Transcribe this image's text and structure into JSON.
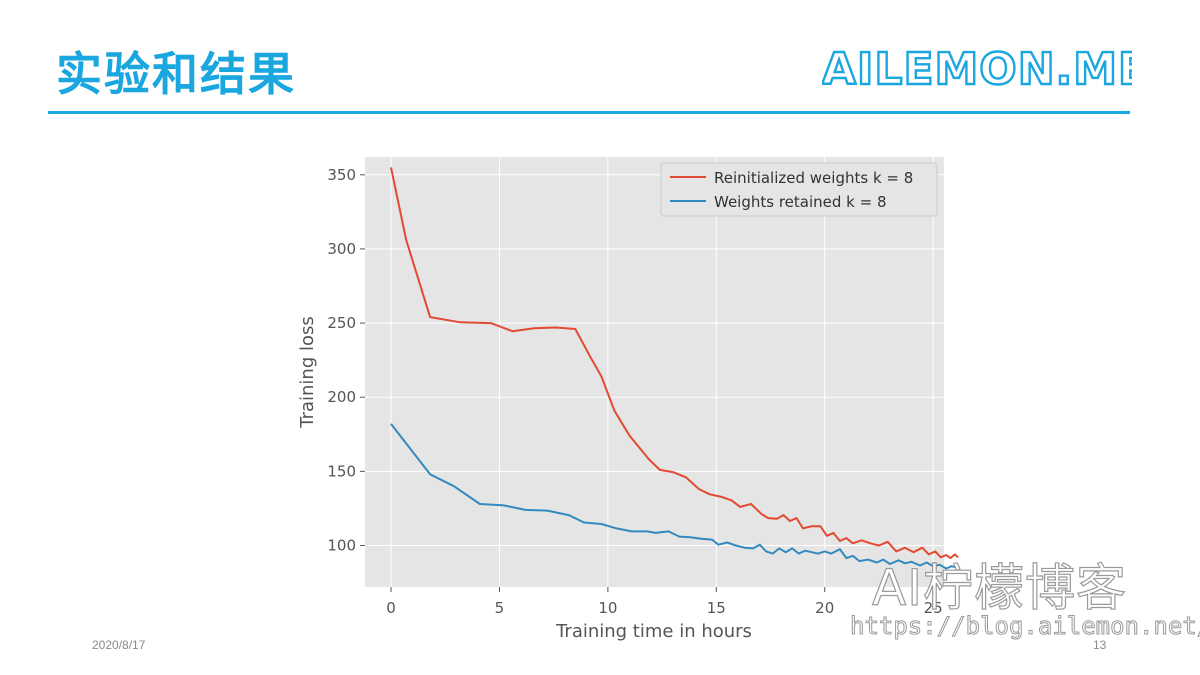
{
  "slide": {
    "title": "实验和结果",
    "brand": "AILEMON.ME",
    "date": "2020/8/17",
    "page_number": "13"
  },
  "watermark": {
    "text": "AI柠檬博客",
    "url": "https://blog.ailemon.net/"
  },
  "colors": {
    "accent": "#1aa6df",
    "series_red": "#e24a33",
    "series_blue": "#348abd",
    "plot_bg": "#e5e5e5"
  },
  "chart_data": {
    "type": "line",
    "title": "",
    "xlabel": "Training time in hours",
    "ylabel": "Training loss",
    "xlim": [
      -1.2,
      25.5
    ],
    "ylim": [
      72,
      362
    ],
    "x_ticks": [
      0,
      5,
      10,
      15,
      20,
      25
    ],
    "y_ticks": [
      100,
      150,
      200,
      250,
      300,
      350
    ],
    "grid": true,
    "legend_position": "top-right",
    "series": [
      {
        "name": "Reinitialized weights k = 8",
        "color": "#e24a33",
        "points": [
          [
            0,
            355
          ],
          [
            0.7,
            306
          ],
          [
            1.8,
            254
          ],
          [
            3.2,
            250.5
          ],
          [
            4.6,
            250
          ],
          [
            5.6,
            244.5
          ],
          [
            6.6,
            246.5
          ],
          [
            7.6,
            247
          ],
          [
            8.5,
            246
          ],
          [
            9.2,
            227
          ],
          [
            9.7,
            214
          ],
          [
            10.3,
            191
          ],
          [
            11.0,
            174
          ],
          [
            11.9,
            158
          ],
          [
            12.4,
            151
          ],
          [
            13.0,
            149.5
          ],
          [
            13.6,
            146
          ],
          [
            14.2,
            138
          ],
          [
            14.7,
            134.5
          ],
          [
            15.2,
            133
          ],
          [
            15.7,
            130.5
          ],
          [
            16.1,
            126
          ],
          [
            16.6,
            128
          ],
          [
            17.1,
            121
          ],
          [
            17.4,
            118.5
          ],
          [
            17.8,
            118
          ],
          [
            18.1,
            120.5
          ],
          [
            18.4,
            116.5
          ],
          [
            18.7,
            118.5
          ],
          [
            19.0,
            111.5
          ],
          [
            19.4,
            113
          ],
          [
            19.8,
            113
          ],
          [
            20.1,
            106.5
          ],
          [
            20.4,
            108.5
          ],
          [
            20.7,
            103
          ],
          [
            21.0,
            105
          ],
          [
            21.3,
            101.5
          ],
          [
            21.7,
            103.5
          ],
          [
            22.1,
            101.5
          ],
          [
            22.5,
            100
          ],
          [
            22.9,
            102.5
          ],
          [
            23.3,
            96
          ],
          [
            23.7,
            98.5
          ],
          [
            24.1,
            95.5
          ],
          [
            24.5,
            98.5
          ],
          [
            24.8,
            94
          ],
          [
            25.1,
            96
          ],
          [
            25.35,
            92
          ],
          [
            25.6,
            93.5
          ],
          [
            25.8,
            91.5
          ],
          [
            26.0,
            94
          ],
          [
            26.15,
            92
          ]
        ]
      },
      {
        "name": "Weights retained k = 8",
        "color": "#348abd",
        "points": [
          [
            0,
            182
          ],
          [
            1.8,
            148
          ],
          [
            2.9,
            140
          ],
          [
            4.1,
            128
          ],
          [
            5.2,
            127
          ],
          [
            6.2,
            124
          ],
          [
            7.2,
            123.5
          ],
          [
            8.2,
            120.5
          ],
          [
            8.9,
            115.5
          ],
          [
            9.7,
            114.5
          ],
          [
            10.4,
            111.5
          ],
          [
            11.1,
            109.5
          ],
          [
            11.8,
            109.5
          ],
          [
            12.2,
            108.5
          ],
          [
            12.8,
            109.5
          ],
          [
            13.3,
            106
          ],
          [
            13.8,
            105.5
          ],
          [
            14.3,
            104.5
          ],
          [
            14.8,
            104
          ],
          [
            15.1,
            100.5
          ],
          [
            15.5,
            102
          ],
          [
            15.9,
            100
          ],
          [
            16.3,
            98.5
          ],
          [
            16.7,
            98
          ],
          [
            17.0,
            100.5
          ],
          [
            17.3,
            96
          ],
          [
            17.6,
            94.5
          ],
          [
            17.9,
            98
          ],
          [
            18.2,
            95.5
          ],
          [
            18.5,
            98
          ],
          [
            18.8,
            94.5
          ],
          [
            19.1,
            96.5
          ],
          [
            19.4,
            95.5
          ],
          [
            19.7,
            94.5
          ],
          [
            20.0,
            96
          ],
          [
            20.3,
            94.5
          ],
          [
            20.7,
            97.5
          ],
          [
            21.0,
            91.5
          ],
          [
            21.3,
            93
          ],
          [
            21.6,
            89.5
          ],
          [
            22.0,
            90.5
          ],
          [
            22.4,
            88.5
          ],
          [
            22.7,
            90.5
          ],
          [
            23.0,
            87.5
          ],
          [
            23.4,
            90
          ],
          [
            23.7,
            88
          ],
          [
            24.0,
            89
          ],
          [
            24.4,
            86.5
          ],
          [
            24.7,
            88.5
          ],
          [
            25.0,
            86
          ],
          [
            25.3,
            87
          ],
          [
            25.6,
            84.5
          ],
          [
            25.85,
            86
          ],
          [
            26.1,
            85
          ]
        ]
      }
    ]
  }
}
